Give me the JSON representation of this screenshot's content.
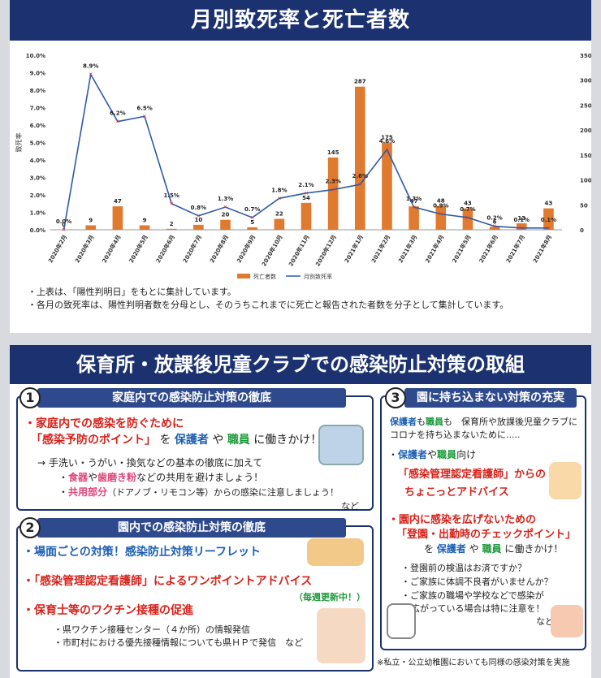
{
  "chart_data": {
    "type": "bar+line",
    "title": "月別致死率と死亡者数",
    "ylabel_left": "致死率",
    "ylim_left": [
      0,
      10
    ],
    "yticks_left": [
      "0.0%",
      "1.0%",
      "2.0%",
      "3.0%",
      "4.0%",
      "5.0%",
      "6.0%",
      "7.0%",
      "8.0%",
      "9.0%",
      "10.0%"
    ],
    "ylim_right": [
      0,
      350
    ],
    "yticks_right": [
      "0",
      "50",
      "100",
      "150",
      "200",
      "250",
      "300",
      "350"
    ],
    "categories": [
      "2020年2月",
      "2020年3月",
      "2020年4月",
      "2020年5月",
      "2020年6月",
      "2020年7月",
      "2020年8月",
      "2020年9月",
      "2020年10月",
      "2020年11月",
      "2020年12月",
      "2021年1月",
      "2021年2月",
      "2021年3月",
      "2021年4月",
      "2021年5月",
      "2021年6月",
      "2021年7月",
      "2021年8月"
    ],
    "series": [
      {
        "name": "死亡者数",
        "axis": "right",
        "type": "bar",
        "color": "#e07a2e",
        "values": [
          0,
          9,
          47,
          9,
          2,
          10,
          20,
          5,
          22,
          54,
          145,
          287,
          175,
          47,
          48,
          43,
          6,
          13,
          43
        ]
      },
      {
        "name": "月別致死率",
        "axis": "left",
        "type": "line",
        "color": "#2e5aa8",
        "values": [
          0.0,
          8.9,
          6.2,
          6.5,
          1.5,
          0.8,
          1.3,
          0.7,
          1.8,
          2.1,
          2.3,
          2.6,
          4.6,
          1.3,
          0.9,
          0.7,
          0.2,
          0.1,
          0.1
        ]
      }
    ],
    "bar_labels": [
      "0",
      "9",
      "47",
      "9",
      "2",
      "10",
      "20",
      "5",
      "22",
      "54",
      "145",
      "287",
      "175",
      "47",
      "48",
      "43",
      "6",
      "13",
      "43"
    ],
    "line_labels": [
      "0.0%",
      "8.9%",
      "6.2%",
      "6.5%",
      "1.5%",
      "0.8%",
      "1.3%",
      "0.7%",
      "1.8%",
      "2.1%",
      "2.3%",
      "2.6%",
      "4.6%",
      "1.3%",
      "0.9%",
      "0.7%",
      "0.2%",
      "0.1%",
      "0.1%"
    ],
    "legend": [
      "死亡者数",
      "月別致死率"
    ],
    "legend_position": "bottom"
  },
  "notes": [
    "上表は、「陽性判明日」をもとに集計しています。",
    "各月の致死率は、陽性判明者数を分母とし、そのうちこれまでに死亡と報告された者数を分子として集計しています。"
  ],
  "section2": {
    "title": "保育所・放課後児童クラブでの感染防止対策の取組",
    "box1": {
      "num": "1",
      "head": "家庭内での感染防止対策の徹底",
      "l1": "・家庭内での感染を防ぐために",
      "l2a": "「感染予防のポイント」",
      "l2b": " を ",
      "l2c": "保護者",
      "l2d": " や ",
      "l2e": "職員",
      "l2f": " に働きかけ！",
      "l3": "→ 手洗い・うがい・換気などの基本の徹底に加えて",
      "l4a": "・",
      "l4b": "食器",
      "l4c": "や",
      "l4d": "歯磨き粉",
      "l4e": "などの共用を避けましょう！",
      "l5a": "・",
      "l5b": "共用部分",
      "l5c": "（ドアノブ・リモコン等）からの感染に注意しましょう！",
      "l6": "など"
    },
    "box2": {
      "num": "2",
      "head": "園内での感染防止対策の徹底",
      "l1": "・場面ごとの対策！感染防止対策リーフレット",
      "l2": "・「感染管理認定看護師」によるワンポイントアドバイス",
      "l3": "（毎週更新中！）",
      "l4": "・保育士等のワクチン接種の促進",
      "l5": "・県ワクチン接種センター（４か所）の情報発信",
      "l6": "・市町村における優先接種情報についても県ＨＰで発信　など"
    },
    "box3": {
      "num": "3",
      "head": "園に持ち込まない対策の充実",
      "l1a": "保護者",
      "l1b": "も",
      "l1c": "職員",
      "l1d": "も　保育所や放課後児童クラブに",
      "l2": "コロナを持ち込まないために.....",
      "l3a": "・",
      "l3b": "保護者",
      "l3c": "や",
      "l3d": "職員",
      "l3e": "向け",
      "l4": "「感染管理認定看護師」からの",
      "l5": "ちょこっとアドバイス",
      "l6": "・園内に感染を広げないための",
      "l7": "「登園・出勤時のチェックポイント」",
      "l8a": "を ",
      "l8b": "保護者",
      "l8c": " や ",
      "l8d": "職員",
      "l8e": " に働きかけ！",
      "l9": "・登園前の検温はお済ですか？",
      "l10": "・ご家族に体調不良者がいませんか？",
      "l11": "・ご家族の職場や学校などで感染が",
      "l12": "広がっている場合は特に注意を！",
      "l13": "など"
    },
    "footnote": "※私立・公立幼稚園においても同様の感染対策を実施"
  }
}
